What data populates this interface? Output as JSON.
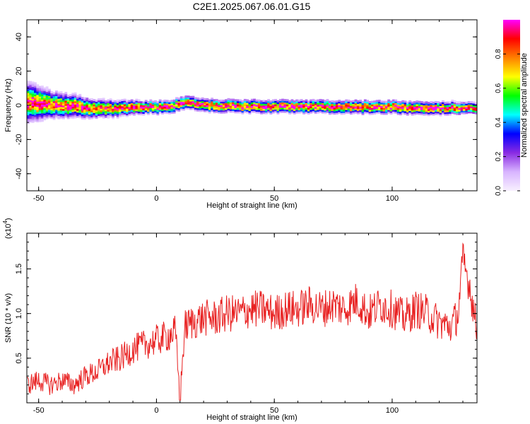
{
  "title": "C2E1.2025.067.06.01.G15",
  "colors": {
    "snr_line": "#e82020",
    "axis": "#000000",
    "background": "#ffffff"
  },
  "chart_data": [
    {
      "type": "heatmap",
      "title": "C2E1.2025.067.06.01.G15",
      "xlabel": "Height of straight line (km)",
      "ylabel": "Frequency (Hz)",
      "xlim": [
        -55,
        136
      ],
      "ylim": [
        -50,
        50
      ],
      "xticks": [
        -50,
        0,
        50,
        100
      ],
      "xtick_labels": [
        "-50",
        "0",
        "50",
        "100"
      ],
      "yticks": [
        -40,
        -20,
        0,
        20,
        40
      ],
      "ytick_labels": [
        "-40",
        "-20",
        "0",
        "20",
        "40"
      ],
      "grid": false,
      "ridge": {
        "description_points_x": [
          -55,
          -45,
          -35,
          -25,
          -15,
          -5,
          5,
          12,
          20,
          40,
          60,
          80,
          100,
          120,
          136
        ],
        "center_frequency": [
          1.0,
          0.0,
          -1.0,
          -2.5,
          -2.0,
          -1.5,
          -1.5,
          1.5,
          -0.5,
          -1.0,
          -1.0,
          -1.5,
          -1.5,
          -2.0,
          -2.0
        ],
        "spread_hz": [
          9,
          6,
          5,
          4,
          3.5,
          3,
          3,
          3,
          3,
          3,
          3,
          3,
          3,
          3,
          2.5
        ]
      },
      "colorbar": {
        "label": "Normalized spectral amplitude",
        "range": [
          0.0,
          1.0
        ],
        "ticks": [
          0.0,
          0.2,
          0.4,
          0.6,
          0.8
        ],
        "tick_labels": [
          "0.0",
          "0.2",
          "0.4",
          "0.6",
          "0.8"
        ],
        "colormap": [
          "#f8f0ff",
          "#d8b4ff",
          "#8a2be2",
          "#0000ff",
          "#00ffff",
          "#00ff00",
          "#ffff00",
          "#ff8000",
          "#ff0000",
          "#ff00ff"
        ]
      }
    },
    {
      "type": "line",
      "xlabel": "Height of straight line (km)",
      "ylabel": "SNR (10 * v/v)",
      "y_multiplier_label": "(x10",
      "y_multiplier_exponent": "4",
      "xlim": [
        -55,
        136
      ],
      "ylim": [
        0,
        1.9
      ],
      "xticks": [
        -50,
        0,
        50,
        100
      ],
      "xtick_labels": [
        "-50",
        "0",
        "50",
        "100"
      ],
      "yticks": [
        0.5,
        1.0,
        1.5
      ],
      "ytick_labels": [
        "0.5",
        "1.0",
        "1.5"
      ],
      "grid": false,
      "series": [
        {
          "color": "#e82020",
          "x": [
            -55,
            -50,
            -45,
            -40,
            -35,
            -30,
            -25,
            -20,
            -15,
            -10,
            -5,
            0,
            5,
            8,
            10,
            12,
            15,
            20,
            25,
            30,
            35,
            40,
            45,
            50,
            55,
            60,
            65,
            70,
            75,
            80,
            85,
            90,
            95,
            100,
            105,
            110,
            115,
            120,
            125,
            128,
            130,
            133,
            136
          ],
          "y": [
            0.2,
            0.25,
            0.2,
            0.25,
            0.2,
            0.3,
            0.35,
            0.45,
            0.5,
            0.6,
            0.65,
            0.7,
            0.75,
            0.8,
            0.05,
            0.85,
            0.9,
            0.95,
            0.95,
            1.0,
            1.0,
            1.05,
            1.05,
            1.0,
            1.05,
            1.05,
            1.1,
            1.05,
            1.1,
            1.05,
            1.15,
            1.0,
            1.1,
            1.05,
            0.95,
            1.05,
            1.0,
            0.9,
            0.85,
            1.0,
            1.6,
            1.3,
            0.8
          ]
        }
      ]
    }
  ]
}
